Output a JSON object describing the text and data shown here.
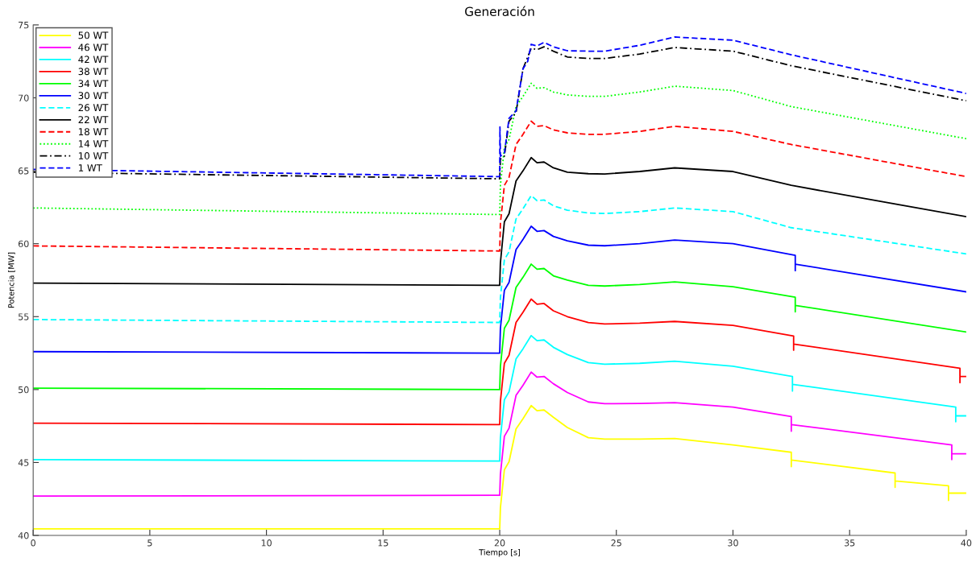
{
  "chart_data": {
    "type": "line",
    "title": "Generación",
    "xlabel": "Tiempo [s]",
    "ylabel": "Potencia [MW]",
    "xlim": [
      0,
      40
    ],
    "xticks": [
      0,
      5,
      10,
      15,
      20,
      25,
      30,
      35,
      40
    ],
    "ylim": [
      40,
      75
    ],
    "yticks": [
      40,
      45,
      50,
      55,
      60,
      65,
      70,
      75
    ],
    "grid": false,
    "legend": "top left",
    "marker": "none",
    "series": [
      {
        "name": "50 WT",
        "color": "#ffff00",
        "line_style": "solid",
        "x": [
          0,
          19.95,
          20,
          20.03,
          20.2,
          20.4,
          20.7,
          21,
          21.35,
          21.6,
          21.9,
          22.3,
          22.9,
          23.8,
          24.5,
          26,
          27.5,
          30,
          32.5,
          32.5,
          32.5,
          36.95,
          36.95,
          36.95,
          39.24,
          39.24,
          39.24,
          40
        ],
        "values": [
          40.45,
          40.45,
          40.45,
          41.9,
          44.5,
          45.05,
          47.3,
          48.0,
          48.9,
          48.55,
          48.6,
          48.1,
          47.4,
          46.7,
          46.6,
          46.6,
          46.65,
          46.2,
          45.7,
          44.72,
          45.17,
          44.28,
          43.3,
          43.73,
          43.4,
          42.4,
          42.9,
          42.9
        ]
      },
      {
        "name": "46 WT",
        "color": "#ff00ff",
        "line_style": "solid",
        "x": [
          0,
          19.95,
          20,
          20.03,
          20.2,
          20.4,
          20.7,
          21,
          21.35,
          21.6,
          21.9,
          22.3,
          22.9,
          23.8,
          24.5,
          26,
          27.5,
          30,
          32.5,
          32.5,
          32.5,
          39.38,
          39.38,
          39.38,
          40
        ],
        "values": [
          42.7,
          42.75,
          42.75,
          44.2,
          46.8,
          47.35,
          49.6,
          50.3,
          51.2,
          50.85,
          50.9,
          50.4,
          49.8,
          49.15,
          49.03,
          49.05,
          49.1,
          48.8,
          48.15,
          47.15,
          47.6,
          46.2,
          45.2,
          45.6,
          45.6
        ]
      },
      {
        "name": "42 WT",
        "color": "#00ffff",
        "line_style": "solid",
        "x": [
          0,
          19.95,
          20,
          20.03,
          20.2,
          20.4,
          20.7,
          21,
          21.35,
          21.6,
          21.9,
          22.3,
          22.9,
          23.8,
          24.5,
          26,
          27.5,
          30,
          32.55,
          32.55,
          32.55,
          39.55,
          39.55,
          39.55,
          40
        ],
        "values": [
          45.2,
          45.1,
          45.1,
          46.7,
          49.3,
          49.85,
          52.1,
          52.8,
          53.7,
          53.35,
          53.4,
          52.9,
          52.4,
          51.85,
          51.74,
          51.8,
          51.95,
          51.6,
          50.9,
          49.9,
          50.36,
          48.8,
          47.8,
          48.2,
          48.2
        ]
      },
      {
        "name": "38 WT",
        "color": "#ff0000",
        "line_style": "solid",
        "x": [
          0,
          19.95,
          20,
          20.03,
          20.2,
          20.4,
          20.7,
          21,
          21.35,
          21.6,
          21.9,
          22.3,
          22.9,
          23.8,
          24.5,
          26,
          27.5,
          30,
          32.6,
          32.6,
          32.6,
          39.73,
          39.73,
          39.73,
          40
        ],
        "values": [
          47.7,
          47.6,
          47.6,
          49.2,
          51.8,
          52.35,
          54.6,
          55.3,
          56.2,
          55.85,
          55.9,
          55.4,
          55.0,
          54.6,
          54.5,
          54.55,
          54.67,
          54.4,
          53.67,
          52.7,
          53.12,
          51.46,
          50.47,
          50.9,
          50.9
        ]
      },
      {
        "name": "34 WT",
        "color": "#00ff00",
        "line_style": "solid",
        "x": [
          0,
          19.95,
          20,
          20.03,
          20.2,
          20.4,
          20.7,
          21,
          21.35,
          21.6,
          21.9,
          22.3,
          22.9,
          23.8,
          24.5,
          26,
          27.5,
          30,
          32.67,
          32.67,
          32.67,
          40
        ],
        "values": [
          50.1,
          50.0,
          50.0,
          51.6,
          54.2,
          54.75,
          57.0,
          57.7,
          58.6,
          58.25,
          58.3,
          57.8,
          57.5,
          57.15,
          57.1,
          57.2,
          57.38,
          57.05,
          56.33,
          55.33,
          55.77,
          53.95
        ]
      },
      {
        "name": "30 WT",
        "color": "#0000ff",
        "line_style": "solid",
        "x": [
          0,
          19.95,
          20,
          20.03,
          20.2,
          20.4,
          20.7,
          21,
          21.35,
          21.6,
          21.9,
          22.3,
          22.9,
          23.8,
          24.5,
          26,
          27.5,
          30,
          32.67,
          32.67,
          32.67,
          40
        ],
        "values": [
          52.6,
          52.5,
          52.5,
          54.2,
          56.8,
          57.35,
          59.6,
          60.3,
          61.2,
          60.85,
          60.9,
          60.5,
          60.2,
          59.9,
          59.86,
          60.0,
          60.25,
          60.0,
          59.2,
          58.15,
          58.6,
          56.7
        ]
      },
      {
        "name": "26 WT",
        "color": "#00ffff",
        "line_style": "dashed",
        "x": [
          0,
          19.95,
          20,
          20.03,
          20.2,
          20.4,
          20.7,
          21,
          21.35,
          21.6,
          21.9,
          22.3,
          22.9,
          23.8,
          24.5,
          26,
          27.5,
          30,
          32.5,
          40
        ],
        "values": [
          54.8,
          54.6,
          54.6,
          56.3,
          58.9,
          59.45,
          61.7,
          62.4,
          63.3,
          62.95,
          63.0,
          62.6,
          62.3,
          62.1,
          62.07,
          62.2,
          62.45,
          62.2,
          61.1,
          59.3
        ]
      },
      {
        "name": "22 WT",
        "color": "#000000",
        "line_style": "solid",
        "x": [
          0,
          19.95,
          20,
          20.03,
          20.2,
          20.4,
          20.7,
          21,
          21.35,
          21.6,
          21.9,
          22.3,
          22.9,
          23.8,
          24.5,
          26,
          27.5,
          30,
          32.5,
          40
        ],
        "values": [
          57.3,
          57.15,
          57.15,
          58.7,
          61.5,
          62.05,
          64.3,
          65.0,
          65.9,
          65.55,
          65.6,
          65.2,
          64.9,
          64.8,
          64.78,
          64.95,
          65.2,
          64.95,
          64.0,
          61.85
        ]
      },
      {
        "name": "18 WT",
        "color": "#ff0000",
        "line_style": "dashed",
        "x": [
          0,
          19.95,
          20,
          20.03,
          20.2,
          20.4,
          20.7,
          21,
          21.35,
          21.6,
          21.9,
          22.3,
          22.9,
          23.8,
          24.5,
          26,
          27.5,
          30,
          32.5,
          40
        ],
        "values": [
          59.85,
          59.5,
          59.5,
          61.4,
          64.0,
          64.55,
          66.8,
          67.5,
          68.4,
          68.05,
          68.1,
          67.8,
          67.6,
          67.5,
          67.5,
          67.7,
          68.05,
          67.7,
          66.8,
          64.6
        ]
      },
      {
        "name": "14 WT",
        "color": "#00ff00",
        "line_style": "dotted",
        "x": [
          0,
          19.95,
          20,
          20.03,
          20.2,
          20.4,
          20.7,
          21,
          21.35,
          21.6,
          21.9,
          22.3,
          22.9,
          23.8,
          24.5,
          26,
          27.5,
          30,
          32.5,
          40
        ],
        "values": [
          62.45,
          62.0,
          62.0,
          64.0,
          66.6,
          67.15,
          69.4,
          70.1,
          71.0,
          70.65,
          70.7,
          70.4,
          70.2,
          70.1,
          70.1,
          70.4,
          70.8,
          70.5,
          69.4,
          67.2
        ]
      },
      {
        "name": "10 WT",
        "color": "#000000",
        "line_style": "dashdot",
        "x": [
          0,
          19.95,
          20,
          20.03,
          20.2,
          20.4,
          20.7,
          21,
          21.35,
          21.6,
          21.9,
          22.3,
          22.9,
          23.8,
          24.5,
          26,
          27.5,
          30,
          32.5,
          40
        ],
        "values": [
          64.9,
          64.45,
          64.45,
          65.8,
          66.0,
          68.4,
          69.0,
          72.0,
          73.4,
          73.3,
          73.5,
          73.2,
          72.8,
          72.7,
          72.7,
          73.0,
          73.45,
          73.2,
          72.2,
          69.8
        ]
      },
      {
        "name": "1 WT",
        "color": "#0000ff",
        "line_style": "dashed",
        "x": [
          0,
          19.95,
          20,
          20.01,
          20.03,
          20.2,
          20.4,
          20.7,
          21,
          21.2,
          21.35,
          21.6,
          21.9,
          22.3,
          22.9,
          23.8,
          24.5,
          26,
          27.5,
          30,
          32.5,
          40
        ],
        "values": [
          65.1,
          64.6,
          64.6,
          68.0,
          66.0,
          66.2,
          68.6,
          69.1,
          72.0,
          72.5,
          73.67,
          73.56,
          73.8,
          73.5,
          73.23,
          73.2,
          73.2,
          73.6,
          74.17,
          73.95,
          72.95,
          70.3
        ]
      }
    ]
  }
}
